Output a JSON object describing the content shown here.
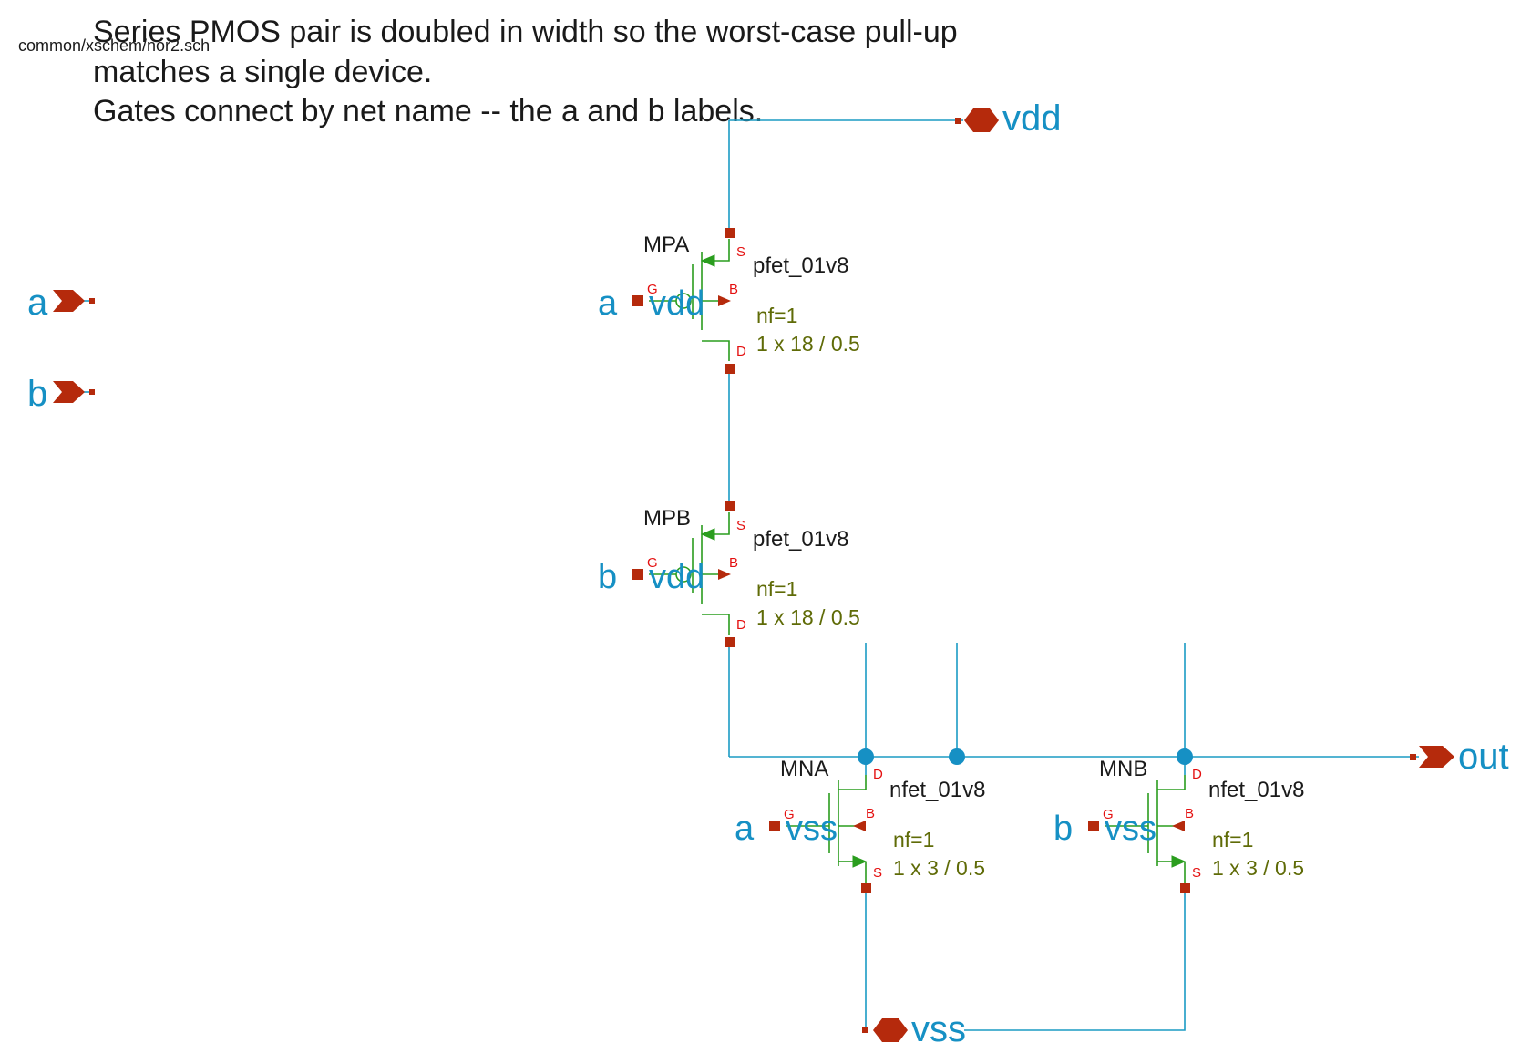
{
  "file_path": "common/xschem/nor2.sch",
  "notes": [
    "Series PMOS pair is doubled in width so the worst-case pull-up",
    "matches a single device.",
    "Gates connect by net name -- the a and b labels."
  ],
  "ports": {
    "a": "a",
    "b": "b",
    "vdd": "vdd",
    "vss": "vss",
    "out": "out"
  },
  "pin_labels": {
    "gate": "G",
    "source": "S",
    "drain": "D",
    "bulk": "B"
  },
  "devices": [
    {
      "id": "MPA",
      "model": "pfet_01v8",
      "nf": "nf=1",
      "size": "1 x 18 / 0.5",
      "gate_net": "a",
      "bulk_net": "vdd"
    },
    {
      "id": "MPB",
      "model": "pfet_01v8",
      "nf": "nf=1",
      "size": "1 x 18 / 0.5",
      "gate_net": "b",
      "bulk_net": "vdd"
    },
    {
      "id": "MNA",
      "model": "nfet_01v8",
      "nf": "nf=1",
      "size": "1 x 3 / 0.5",
      "gate_net": "a",
      "bulk_net": "vss"
    },
    {
      "id": "MNB",
      "model": "nfet_01v8",
      "nf": "nf=1",
      "size": "1 x 3 / 0.5",
      "gate_net": "b",
      "bulk_net": "vss"
    }
  ],
  "colors": {
    "wire": "#1b9bc4",
    "device": "#2a9d1e",
    "pin": "#b52a0c",
    "net_label": "#1690c4",
    "param": "#5f6b07"
  }
}
